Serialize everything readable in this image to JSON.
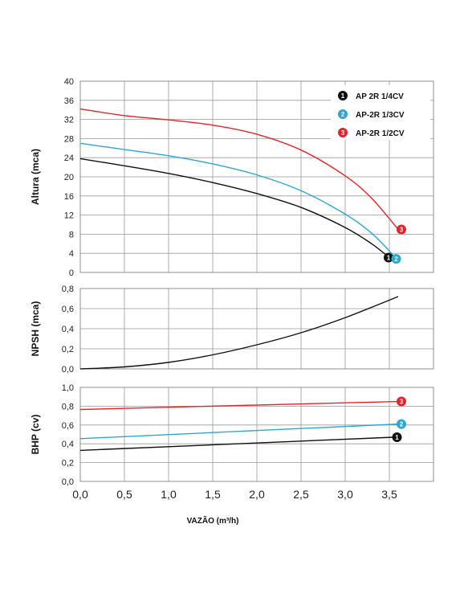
{
  "chart_data": [
    {
      "type": "line",
      "panel": "head",
      "ylabel": "Altura (mca)",
      "ylim": [
        0,
        40
      ],
      "yticks": [
        "40",
        "36",
        "32",
        "28",
        "24",
        "20",
        "16",
        "12",
        "8",
        "4",
        "0"
      ],
      "ytick_values": [
        40,
        36,
        32,
        28,
        24,
        20,
        16,
        12,
        8,
        4,
        0
      ],
      "xlim": [
        0,
        4
      ],
      "grid": true,
      "legend_position": "top-right",
      "legend": [
        {
          "marker": "1",
          "label": "AP 2R 1/4CV",
          "color": "#111111"
        },
        {
          "marker": "2",
          "label": "AP-2R 1/3CV",
          "color": "#2aa7d6"
        },
        {
          "marker": "3",
          "label": "AP-2R 1/2CV",
          "color": "#e3252b"
        }
      ],
      "series": [
        {
          "marker": "1",
          "color": "#111111",
          "x": [
            0,
            0.5,
            1.0,
            1.5,
            2.0,
            2.5,
            3.0,
            3.3,
            3.5
          ],
          "y": [
            23.8,
            22.3,
            20.7,
            18.8,
            16.5,
            13.6,
            9.4,
            6.0,
            3.1
          ]
        },
        {
          "marker": "2",
          "color": "#2aa7d6",
          "x": [
            0,
            0.5,
            1.0,
            1.5,
            2.0,
            2.5,
            3.0,
            3.3,
            3.55
          ],
          "y": [
            27.0,
            25.7,
            24.4,
            22.7,
            20.4,
            17.1,
            12.2,
            8.2,
            3.5
          ]
        },
        {
          "marker": "3",
          "color": "#e3252b",
          "x": [
            0,
            0.5,
            1.0,
            1.5,
            2.0,
            2.5,
            3.0,
            3.3,
            3.6
          ],
          "y": [
            34.2,
            32.8,
            31.9,
            30.8,
            28.9,
            25.6,
            20.2,
            15.5,
            9.0
          ]
        }
      ]
    },
    {
      "type": "line",
      "panel": "npsh",
      "ylabel": "NPSH (mca)",
      "ylim": [
        0,
        0.8
      ],
      "yticks": [
        "0,8",
        "0,6",
        "0,4",
        "0,2",
        "0,0"
      ],
      "ytick_values": [
        0.8,
        0.6,
        0.4,
        0.2,
        0.0
      ],
      "xlim": [
        0,
        4
      ],
      "grid": true,
      "series": [
        {
          "color": "#111111",
          "x": [
            0,
            0.5,
            1.0,
            1.5,
            2.0,
            2.5,
            3.0,
            3.6
          ],
          "y": [
            0.0,
            0.02,
            0.065,
            0.14,
            0.24,
            0.36,
            0.51,
            0.72
          ]
        }
      ]
    },
    {
      "type": "line",
      "panel": "bhp",
      "ylabel": "BHP (cv)",
      "xlabel": "VAZÃO (m³/h)",
      "ylim": [
        0,
        1.0
      ],
      "yticks": [
        "1,0",
        "0,8",
        "0,6",
        "0,4",
        "0,2",
        "0,0"
      ],
      "ytick_values": [
        1.0,
        0.8,
        0.6,
        0.4,
        0.2,
        0.0
      ],
      "xlim": [
        0,
        4
      ],
      "xticks": [
        "0,0",
        "0,5",
        "1,0",
        "1,5",
        "2,0",
        "2,5",
        "3,0",
        "3,5"
      ],
      "xtick_values": [
        0,
        0.5,
        1.0,
        1.5,
        2.0,
        2.5,
        3.0,
        3.5
      ],
      "grid": true,
      "series": [
        {
          "marker": "1",
          "color": "#111111",
          "x": [
            0,
            3.55
          ],
          "y": [
            0.33,
            0.47
          ]
        },
        {
          "marker": "2",
          "color": "#2aa7d6",
          "x": [
            0,
            3.6
          ],
          "y": [
            0.455,
            0.61
          ]
        },
        {
          "marker": "3",
          "color": "#e3252b",
          "x": [
            0,
            3.6
          ],
          "y": [
            0.765,
            0.85
          ]
        }
      ]
    }
  ]
}
